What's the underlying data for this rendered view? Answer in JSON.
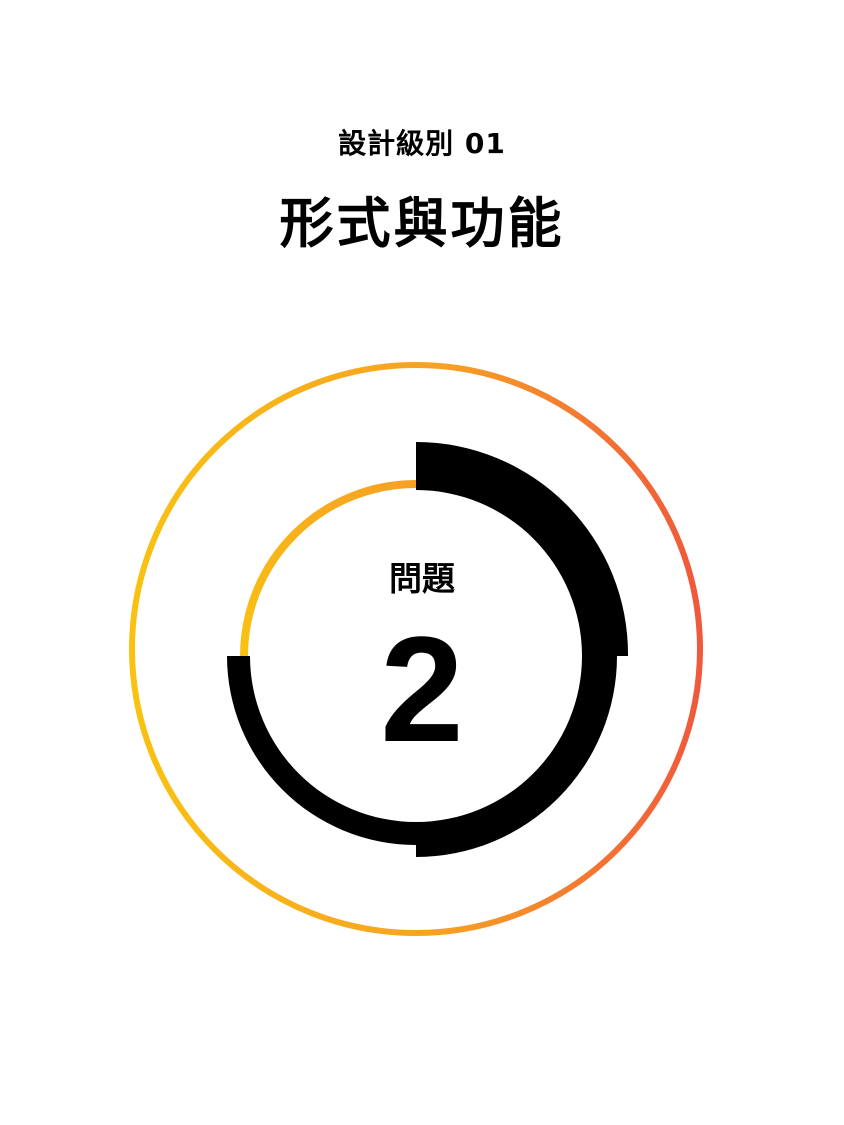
{
  "header": {
    "level_label": "設計級別 01",
    "title": "形式與功能"
  },
  "question": {
    "label": "問題",
    "number": "2"
  },
  "progress": {
    "current": 2,
    "completed_fraction_outer": 0.25,
    "completed_fraction_inner": 0.5
  },
  "colors": {
    "gradient_start": "#F9C212",
    "gradient_end": "#F0583C",
    "progress_black": "#000000"
  }
}
